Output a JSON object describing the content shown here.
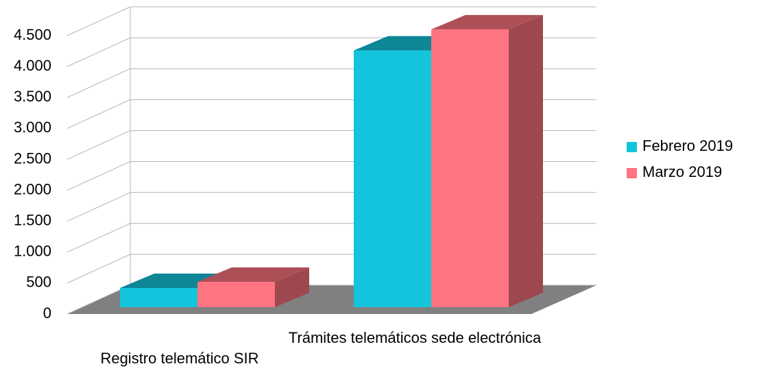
{
  "chart_data": {
    "type": "bar3d",
    "categories": [
      "Registro telemático SIR",
      "Trámites telemáticos sede electrónica"
    ],
    "series": [
      {
        "name": "Febrero 2019",
        "color": "#13c5dc",
        "values": [
          310,
          4150
        ]
      },
      {
        "name": "Marzo 2019",
        "color": "#fe7480",
        "values": [
          410,
          4490
        ]
      }
    ],
    "ylim": [
      0,
      4500
    ],
    "yticks": [
      0,
      500,
      {
        "value": 1000,
        "label": "1.000"
      },
      {
        "value": 1500,
        "label": "1.500"
      },
      {
        "value": 2000,
        "label": "2.000"
      },
      {
        "value": 2500,
        "label": "2.500"
      },
      {
        "value": 3000,
        "label": "3.000"
      },
      {
        "value": 3500,
        "label": "3.500"
      },
      {
        "value": 4000,
        "label": "4.000"
      },
      {
        "value": 4500,
        "label": "4.500"
      }
    ],
    "grid": true,
    "legend": "right"
  }
}
